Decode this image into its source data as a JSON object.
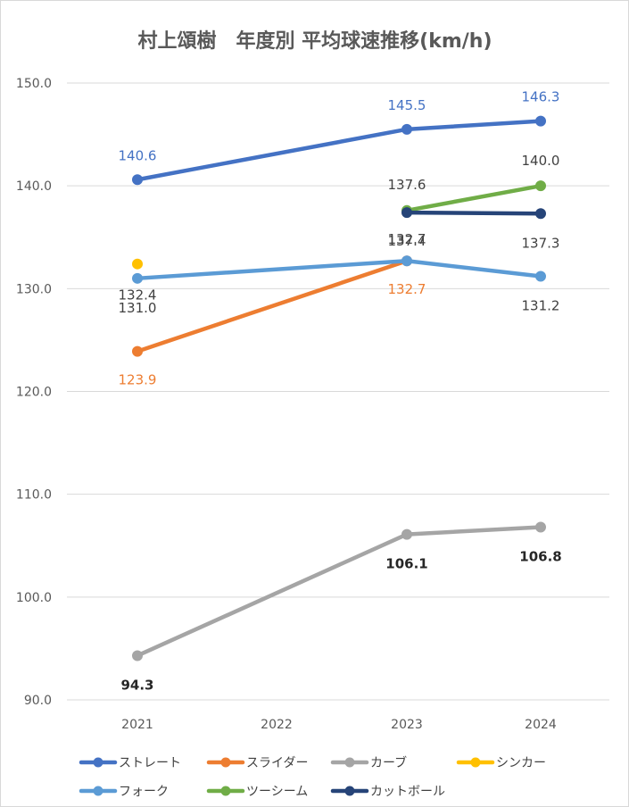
{
  "chart_data": {
    "type": "line",
    "title": "村上頌樹　年度別 平均球速推移(km/h)",
    "xlabel": "",
    "ylabel": "",
    "categories": [
      "2021",
      "2022",
      "2023",
      "2024"
    ],
    "ylim": [
      90,
      150
    ],
    "ytick_step": 10,
    "ytick_labels": [
      "90.0",
      "100.0",
      "110.0",
      "120.0",
      "130.0",
      "140.0",
      "150.0"
    ],
    "grid": true,
    "legend_position": "bottom",
    "series": [
      {
        "name": "ストレート",
        "color": "#4472c4",
        "values": [
          140.6,
          null,
          145.5,
          146.3
        ],
        "label_color": "#4472c4",
        "label_weight": "normal",
        "label_dir": "above"
      },
      {
        "name": "スライダー",
        "color": "#ed7d31",
        "values": [
          123.9,
          null,
          132.7,
          null
        ],
        "label_color": "#ed7d31",
        "label_weight": "normal",
        "label_dir": "below"
      },
      {
        "name": "カーブ",
        "color": "#a5a5a5",
        "values": [
          94.3,
          null,
          106.1,
          106.8
        ],
        "label_color": "#262626",
        "label_weight": "bold",
        "label_dir": "below"
      },
      {
        "name": "シンカー",
        "color": "#ffc000",
        "values": [
          132.4,
          null,
          null,
          null
        ],
        "label_color": "#404040",
        "label_weight": "normal",
        "label_dir": "below"
      },
      {
        "name": "フォーク",
        "color": "#5b9bd5",
        "values": [
          131.0,
          null,
          132.7,
          131.2
        ],
        "label_color": "#404040",
        "label_weight": "normal",
        "label_dir": "below"
      },
      {
        "name": "ツーシーム",
        "color": "#70ad47",
        "values": [
          null,
          null,
          137.6,
          140.0
        ],
        "label_color": "#404040",
        "label_weight": "normal",
        "label_dir": "above"
      },
      {
        "name": "カットボール",
        "color": "#264478",
        "values": [
          null,
          null,
          137.4,
          137.3
        ],
        "label_color": "#404040",
        "label_weight": "normal",
        "label_dir": "below"
      }
    ],
    "data_labels": [
      {
        "series": "ストレート",
        "category": "2021",
        "text": "140.6"
      },
      {
        "series": "ストレート",
        "category": "2023",
        "text": "145.5"
      },
      {
        "series": "ストレート",
        "category": "2024",
        "text": "146.3"
      },
      {
        "series": "スライダー",
        "category": "2021",
        "text": "123.9"
      },
      {
        "series": "スライダー",
        "category": "2023",
        "text": "132.7"
      },
      {
        "series": "カーブ",
        "category": "2021",
        "text": "94.3"
      },
      {
        "series": "カーブ",
        "category": "2023",
        "text": "106.1"
      },
      {
        "series": "カーブ",
        "category": "2024",
        "text": "106.8"
      },
      {
        "series": "シンカー",
        "category": "2021",
        "text": "132.4"
      },
      {
        "series": "フォーク",
        "category": "2021",
        "text": "131.0"
      },
      {
        "series": "フォーク",
        "category": "2023",
        "text": "132.7"
      },
      {
        "series": "フォーク",
        "category": "2024",
        "text": "131.2"
      },
      {
        "series": "ツーシーム",
        "category": "2023",
        "text": "137.6"
      },
      {
        "series": "ツーシーム",
        "category": "2024",
        "text": "140.0"
      },
      {
        "series": "カットボール",
        "category": "2023",
        "text": "137.4"
      },
      {
        "series": "カットボール",
        "category": "2024",
        "text": "137.3"
      }
    ]
  }
}
